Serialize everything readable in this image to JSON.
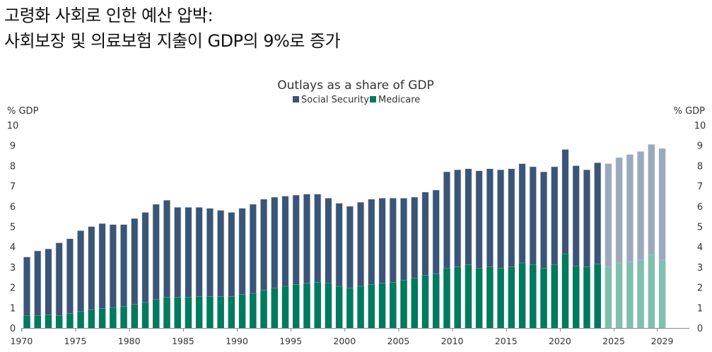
{
  "headline": {
    "line1": "고령화 사회로 인한 예산 압박:",
    "line2": "사회보장 및 의료보험 지출이 GDP의 9%로 증가"
  },
  "colors": {
    "social_security": "#3a5576",
    "medicare": "#007a5e",
    "social_security_projected": "#9aa9bb",
    "medicare_projected": "#7fbfae",
    "axis": "#888888"
  },
  "chart_data": {
    "type": "bar",
    "stacked": true,
    "title": "Outlays as a share of GDP",
    "ylabel_left": "% GDP",
    "ylabel_right": "% GDP",
    "ylim": [
      0,
      10
    ],
    "yticks": [
      0,
      1,
      2,
      3,
      4,
      5,
      6,
      7,
      8,
      9,
      10
    ],
    "xtick_labels": [
      "1970",
      "1975",
      "1980",
      "1985",
      "1990",
      "1995",
      "2000",
      "2005",
      "2010",
      "2015",
      "2020",
      "2025",
      "2029"
    ],
    "legend": [
      "Social Security",
      "Medicare"
    ],
    "legend_position": "top-center",
    "projection_start_year": 2024,
    "x": [
      1970,
      1971,
      1972,
      1973,
      1974,
      1975,
      1976,
      1977,
      1978,
      1979,
      1980,
      1981,
      1982,
      1983,
      1984,
      1985,
      1986,
      1987,
      1988,
      1989,
      1990,
      1991,
      1992,
      1993,
      1994,
      1995,
      1996,
      1997,
      1998,
      1999,
      2000,
      2001,
      2002,
      2003,
      2004,
      2005,
      2006,
      2007,
      2008,
      2009,
      2010,
      2011,
      2012,
      2013,
      2014,
      2015,
      2016,
      2017,
      2018,
      2019,
      2020,
      2021,
      2022,
      2023,
      2024,
      2025,
      2026,
      2027,
      2028,
      2029
    ],
    "series": [
      {
        "name": "Medicare",
        "values": [
          0.6,
          0.6,
          0.65,
          0.6,
          0.7,
          0.8,
          0.9,
          0.95,
          1.0,
          1.05,
          1.15,
          1.25,
          1.4,
          1.5,
          1.5,
          1.5,
          1.55,
          1.55,
          1.55,
          1.55,
          1.65,
          1.7,
          1.85,
          1.95,
          2.05,
          2.15,
          2.2,
          2.25,
          2.2,
          2.05,
          1.95,
          2.05,
          2.15,
          2.2,
          2.25,
          2.35,
          2.45,
          2.6,
          2.65,
          2.95,
          3.0,
          3.1,
          2.95,
          3.0,
          2.95,
          3.0,
          3.2,
          3.1,
          2.95,
          3.1,
          3.65,
          3.05,
          3.0,
          3.15,
          3.0,
          3.2,
          3.25,
          3.35,
          3.6,
          3.35
        ]
      },
      {
        "name": "Social Security",
        "values": [
          2.9,
          3.2,
          3.25,
          3.6,
          3.7,
          4.0,
          4.1,
          4.2,
          4.1,
          4.05,
          4.25,
          4.45,
          4.7,
          4.8,
          4.45,
          4.45,
          4.4,
          4.35,
          4.25,
          4.15,
          4.25,
          4.4,
          4.5,
          4.5,
          4.45,
          4.4,
          4.4,
          4.35,
          4.2,
          4.1,
          4.05,
          4.15,
          4.2,
          4.2,
          4.15,
          4.05,
          4.0,
          4.1,
          4.15,
          4.75,
          4.8,
          4.75,
          4.8,
          4.85,
          4.85,
          4.85,
          4.9,
          4.85,
          4.75,
          4.85,
          5.15,
          4.95,
          4.8,
          5.0,
          5.1,
          5.2,
          5.3,
          5.35,
          5.45,
          5.5
        ]
      }
    ]
  }
}
